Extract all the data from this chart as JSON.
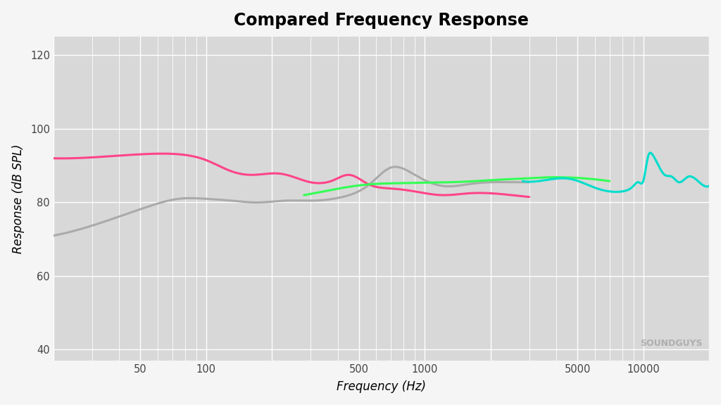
{
  "title": "Compared Frequency Response",
  "xlabel": "Frequency (Hz)",
  "ylabel": "Response (dB SPL)",
  "xlim_log": [
    20,
    20000
  ],
  "ylim": [
    37,
    125
  ],
  "yticks": [
    40,
    60,
    80,
    100,
    120
  ],
  "background_color": "#d8d8d8",
  "fig_background": "#f5f5f5",
  "grid_color": "#ffffff",
  "title_fontsize": 17,
  "label_fontsize": 12,
  "line_width": 2.2,
  "curves": {
    "pink": {
      "color": "#FF4488",
      "freqs": [
        20,
        35,
        55,
        75,
        100,
        130,
        160,
        220,
        300,
        380,
        450,
        550,
        700,
        900,
        1200,
        1600,
        2000,
        2500,
        3000
      ],
      "vals": [
        92.0,
        92.5,
        93.2,
        93.1,
        91.5,
        88.5,
        87.5,
        87.8,
        85.5,
        86.0,
        87.5,
        85.0,
        83.8,
        83.0,
        82.0,
        82.5,
        82.5,
        82.0,
        81.5
      ]
    },
    "gray": {
      "color": "#aaaaaa",
      "freqs": [
        20,
        35,
        55,
        75,
        100,
        130,
        170,
        230,
        310,
        420,
        560,
        700,
        900,
        1200,
        1600,
        2000,
        2500,
        3000
      ],
      "vals": [
        71.0,
        75.0,
        79.0,
        81.0,
        81.0,
        80.5,
        80.0,
        80.5,
        80.5,
        81.5,
        85.0,
        89.5,
        87.5,
        84.5,
        85.0,
        85.5,
        85.5,
        85.5
      ]
    },
    "green": {
      "color": "#33FF55",
      "freqs": [
        280,
        380,
        480,
        580,
        700,
        850,
        1000,
        1300,
        1700,
        2200,
        2800,
        3500,
        4500,
        5500,
        7000
      ],
      "vals": [
        82.0,
        83.5,
        84.5,
        85.0,
        85.2,
        85.3,
        85.4,
        85.5,
        85.8,
        86.2,
        86.5,
        86.8,
        86.8,
        86.5,
        85.8
      ]
    },
    "cyan": {
      "color": "#00DDCC",
      "freqs": [
        2800,
        3500,
        4500,
        5200,
        6000,
        7000,
        8000,
        9000,
        9500,
        10000,
        10500,
        11000,
        11500,
        12500,
        13500,
        14500,
        16000,
        18000,
        20000
      ],
      "vals": [
        85.8,
        86.0,
        86.5,
        85.5,
        84.0,
        83.0,
        83.0,
        84.5,
        85.5,
        86.0,
        92.5,
        93.0,
        91.0,
        87.5,
        87.0,
        85.5,
        87.0,
        85.5,
        84.5
      ]
    }
  },
  "xtick_vals": [
    20,
    50,
    100,
    200,
    500,
    1000,
    2000,
    5000,
    10000,
    20000
  ],
  "xtick_labels": [
    "",
    "50",
    "100",
    "",
    "500",
    "1000",
    "",
    "5000",
    "10000",
    ""
  ],
  "soundguys_text": "SOUNDGUYS",
  "soundguys_color": "#aaaaaa"
}
